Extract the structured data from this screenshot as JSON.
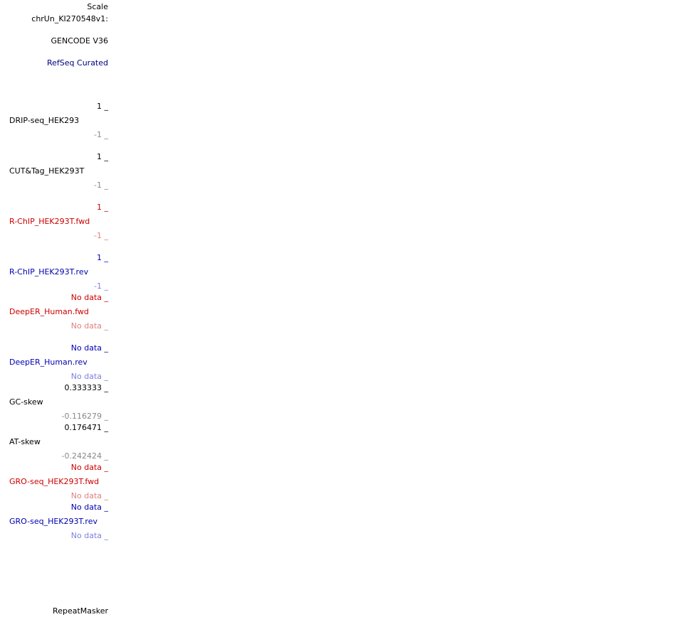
{
  "header": {
    "scale": "Scale",
    "chrom": "chrUn_KI270548v1:"
  },
  "tracks": {
    "gencode": "GENCODE V36",
    "refseq": "RefSeq Curated",
    "drip": {
      "max": "1 _",
      "name": "DRIP-seq_HEK293",
      "min": "-1 _"
    },
    "cuttag": {
      "max": "1 _",
      "name": "CUT&Tag_HEK293T",
      "min": "-1 _"
    },
    "rchip_fwd": {
      "max": "1 _",
      "name": "R-ChIP_HEK293T.fwd",
      "min": "-1 _"
    },
    "rchip_rev": {
      "max": "1 _",
      "name": "R-ChIP_HEK293T.rev",
      "min": "-1 _"
    },
    "deeper_fwd": {
      "max": "No data _",
      "name": "DeepER_Human.fwd",
      "min": "No data _"
    },
    "deeper_rev": {
      "max": "No data _",
      "name": "DeepER_Human.rev",
      "min": "No data _"
    },
    "gcskew": {
      "max": "0.333333 _",
      "name": "GC-skew",
      "min": "-0.116279 _"
    },
    "atskew": {
      "max": "0.176471 _",
      "name": "AT-skew",
      "min": "-0.242424 _"
    },
    "gro_fwd": {
      "max": "No data _",
      "name": "GRO-seq_HEK293T.fwd",
      "min": "No data _"
    },
    "gro_rev": {
      "max": "No data _",
      "name": "GRO-seq_HEK293T.rev",
      "min": "No data _"
    },
    "repeatmasker": "RepeatMasker"
  },
  "colors": {
    "black": "#000000",
    "gray": "#888888",
    "red": "#cc0000",
    "pink": "#e08080",
    "blue": "#0000b0",
    "lightblue": "#8080e0",
    "navy": "#000080"
  }
}
